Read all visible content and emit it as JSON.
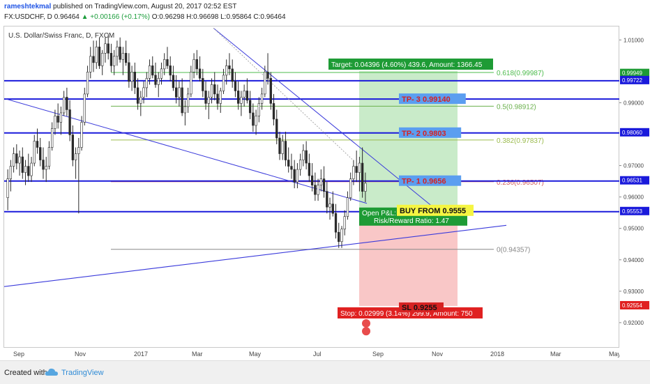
{
  "header": {
    "user": "rameshtekmal",
    "published": "published on TradingView.com, August 20, 2017 02:52 EST",
    "symbol": "FX:USDCHF, D",
    "last": "0.96464",
    "change": "▲ +0.00166 (+0.17%)",
    "ohlc": "O:0.96298 H:0.96698 L:0.95864 C:0.96464"
  },
  "symbol_title": "U.S. Dollar/Swiss Franc, D, FXCM",
  "footer": {
    "created": "Created with",
    "brand": "TradingView"
  },
  "colors": {
    "level_line": "#1a1adb",
    "trend_line": "#3a3adb",
    "target_green": "#b7e4b7",
    "stop_red": "#f7b4b4",
    "label_green": "#1e9b35",
    "label_red": "#e02121",
    "yellow": "#f5f542"
  },
  "chart_data": {
    "type": "candlestick",
    "title": "U.S. Dollar/Swiss Franc, D, FXCM",
    "x_ticks": [
      "Sep",
      "Nov",
      "2017",
      "Mar",
      "May",
      "Jul",
      "Sep",
      "Nov",
      "2018",
      "Mar",
      "May"
    ],
    "y_ticks": [
      "1.01000",
      "0.99000",
      "0.97000",
      "0.96000",
      "0.95000",
      "0.94000",
      "0.93000",
      "0.92000"
    ],
    "ylim": [
      0.912,
      1.0145
    ],
    "current_price": 0.96464,
    "price_labels": [
      {
        "value": 0.99949,
        "text": "0.99949",
        "color": "#1e9b35"
      },
      {
        "value": 0.99722,
        "text": "0.99722",
        "color": "#1a1adb"
      },
      {
        "value": 0.9806,
        "text": "0.98060",
        "color": "#1a1adb"
      },
      {
        "value": 0.96531,
        "text": "0.96531",
        "color": "#1a1adb"
      },
      {
        "value": 0.95553,
        "text": "0.95553",
        "color": "#1a1adb"
      },
      {
        "value": 0.92554,
        "text": "0.92554",
        "color": "#e02121"
      }
    ],
    "horizontal_levels": [
      0.99722,
      0.9914,
      0.9806,
      0.96531,
      0.95553
    ],
    "fib_levels": [
      {
        "value": 0.99987,
        "label": "0.618(0.99987)",
        "color": "#4dbb4d"
      },
      {
        "value": 0.98912,
        "label": "0.5(0.98912)",
        "color": "#6ab04c"
      },
      {
        "value": 0.97837,
        "label": "0.382(0.97837)",
        "color": "#9bbb4d"
      },
      {
        "value": 0.96507,
        "label": "0.236(0.96507)",
        "color": "#d26060"
      },
      {
        "value": 0.94357,
        "label": "0(0.94357)",
        "color": "#888888"
      }
    ],
    "annotations": {
      "target": "Target: 0.04396 (4.60%) 439.6, Amount: 1366.45",
      "stop": "Stop: 0.02999 (3.14%) 299.9, Amount: 750",
      "open_pl": "Open P&L:",
      "risk_reward": "Risk/Reward Ratio: 1.47",
      "buy": "BUY FROM 0.9555",
      "tp1": "TP- 1 0.9656",
      "tp2": "TP- 2 0.9803",
      "tp3": "TP- 3 0.99140",
      "sl": "SL  0.9255"
    },
    "candles": [
      [
        0.96,
        0.969,
        0.956,
        0.966
      ],
      [
        0.966,
        0.972,
        0.962,
        0.97
      ],
      [
        0.97,
        0.976,
        0.968,
        0.974
      ],
      [
        0.974,
        0.977,
        0.969,
        0.971
      ],
      [
        0.971,
        0.975,
        0.967,
        0.973
      ],
      [
        0.973,
        0.976,
        0.966,
        0.968
      ],
      [
        0.968,
        0.972,
        0.964,
        0.97
      ],
      [
        0.97,
        0.974,
        0.965,
        0.967
      ],
      [
        0.967,
        0.973,
        0.965,
        0.971
      ],
      [
        0.971,
        0.98,
        0.97,
        0.978
      ],
      [
        0.978,
        0.982,
        0.974,
        0.976
      ],
      [
        0.976,
        0.979,
        0.97,
        0.972
      ],
      [
        0.972,
        0.976,
        0.966,
        0.969
      ],
      [
        0.969,
        0.973,
        0.965,
        0.97
      ],
      [
        0.97,
        0.978,
        0.969,
        0.976
      ],
      [
        0.976,
        0.984,
        0.975,
        0.982
      ],
      [
        0.982,
        0.988,
        0.98,
        0.986
      ],
      [
        0.986,
        0.99,
        0.982,
        0.984
      ],
      [
        0.984,
        0.989,
        0.98,
        0.987
      ],
      [
        0.987,
        0.994,
        0.986,
        0.992
      ],
      [
        0.992,
        0.995,
        0.986,
        0.988
      ],
      [
        0.988,
        0.991,
        0.978,
        0.98
      ],
      [
        0.98,
        0.983,
        0.97,
        0.972
      ],
      [
        0.972,
        0.976,
        0.966,
        0.974
      ],
      [
        0.974,
        0.979,
        0.955,
        0.976
      ],
      [
        0.976,
        0.986,
        0.975,
        0.984
      ],
      [
        0.984,
        0.995,
        0.983,
        0.993
      ],
      [
        0.993,
        1.002,
        0.992,
        1.0
      ],
      [
        1.0,
        1.008,
        0.998,
        1.005
      ],
      [
        1.005,
        1.01,
        1.0,
        1.003
      ],
      [
        1.003,
        1.01,
        1.001,
        1.008
      ],
      [
        1.008,
        1.011,
        1.001,
        1.002
      ],
      [
        1.002,
        1.007,
        0.999,
        1.006
      ],
      [
        1.006,
        1.011,
        1.003,
        1.009
      ],
      [
        1.009,
        1.012,
        1.004,
        1.006
      ],
      [
        1.006,
        1.009,
        1.0,
        1.002
      ],
      [
        1.002,
        1.007,
        0.999,
        1.005
      ],
      [
        1.005,
        1.01,
        1.002,
        1.008
      ],
      [
        1.008,
        1.011,
        1.003,
        1.004
      ],
      [
        1.004,
        1.008,
        0.999,
        1.006
      ],
      [
        1.006,
        1.01,
        1.002,
        1.003
      ],
      [
        1.003,
        1.006,
        0.995,
        0.997
      ],
      [
        0.997,
        1.002,
        0.994,
        1.0
      ],
      [
        1.0,
        1.003,
        0.993,
        0.995
      ],
      [
        0.995,
        0.998,
        0.988,
        0.99
      ],
      [
        0.99,
        0.994,
        0.986,
        0.992
      ],
      [
        0.992,
        0.997,
        0.99,
        0.995
      ],
      [
        0.995,
        1.0,
        0.992,
        0.998
      ],
      [
        0.998,
        1.004,
        0.996,
        1.002
      ],
      [
        1.002,
        1.005,
        0.998,
        0.999
      ],
      [
        0.999,
        1.003,
        0.995,
        0.996
      ],
      [
        0.996,
        1.0,
        0.992,
        0.998
      ],
      [
        0.998,
        1.003,
        0.996,
        1.001
      ],
      [
        1.001,
        1.006,
        0.999,
        1.004
      ],
      [
        1.004,
        1.008,
        1.001,
        1.002
      ],
      [
        1.002,
        1.005,
        0.997,
        0.999
      ],
      [
        0.999,
        1.002,
        0.994,
        0.995
      ],
      [
        0.995,
        0.999,
        0.99,
        0.992
      ],
      [
        0.992,
        0.997,
        0.989,
        0.995
      ],
      [
        0.995,
        0.998,
        0.986,
        0.987
      ],
      [
        0.987,
        0.991,
        0.983,
        0.989
      ],
      [
        0.989,
        0.995,
        0.987,
        0.993
      ],
      [
        0.993,
        1.002,
        0.992,
        1.0
      ],
      [
        1.0,
        1.006,
        0.998,
        1.004
      ],
      [
        1.004,
        1.007,
        0.999,
        1.001
      ],
      [
        1.001,
        1.005,
        0.997,
        0.998
      ],
      [
        0.998,
        1.001,
        0.992,
        0.994
      ],
      [
        0.994,
        0.997,
        0.988,
        0.99
      ],
      [
        0.99,
        0.994,
        0.985,
        0.992
      ],
      [
        0.992,
        0.998,
        0.99,
        0.996
      ],
      [
        0.996,
        1.0,
        0.991,
        0.993
      ],
      [
        0.993,
        0.996,
        0.988,
        0.99
      ],
      [
        0.99,
        0.995,
        0.987,
        0.994
      ],
      [
        0.994,
        1.001,
        0.993,
        0.999
      ],
      [
        0.999,
        1.004,
        0.996,
        1.002
      ],
      [
        1.002,
        1.006,
        0.999,
        1.001
      ],
      [
        1.001,
        1.004,
        0.995,
        0.997
      ],
      [
        0.997,
        1.0,
        0.992,
        0.994
      ],
      [
        0.994,
        0.997,
        0.988,
        0.99
      ],
      [
        0.99,
        0.994,
        0.986,
        0.992
      ],
      [
        0.992,
        0.996,
        0.989,
        0.994
      ],
      [
        0.994,
        0.998,
        0.99,
        0.991
      ],
      [
        0.991,
        0.994,
        0.985,
        0.987
      ],
      [
        0.987,
        0.99,
        0.981,
        0.983
      ],
      [
        0.983,
        0.988,
        0.98,
        0.986
      ],
      [
        0.986,
        0.992,
        0.984,
        0.99
      ],
      [
        0.99,
        0.995,
        0.988,
        0.993
      ],
      [
        0.993,
        1.002,
        0.992,
        1.0
      ],
      [
        1.0,
        1.006,
        0.996,
        0.998
      ],
      [
        0.998,
        1.0,
        0.988,
        0.99
      ],
      [
        0.99,
        0.993,
        0.983,
        0.985
      ],
      [
        0.985,
        0.988,
        0.977,
        0.979
      ],
      [
        0.979,
        0.981,
        0.972,
        0.974
      ],
      [
        0.974,
        0.98,
        0.972,
        0.978
      ],
      [
        0.978,
        0.981,
        0.97,
        0.972
      ],
      [
        0.972,
        0.976,
        0.968,
        0.97
      ],
      [
        0.97,
        0.974,
        0.966,
        0.969
      ],
      [
        0.969,
        0.972,
        0.963,
        0.965
      ],
      [
        0.965,
        0.971,
        0.963,
        0.969
      ],
      [
        0.969,
        0.974,
        0.967,
        0.972
      ],
      [
        0.972,
        0.977,
        0.97,
        0.975
      ],
      [
        0.975,
        0.978,
        0.969,
        0.971
      ],
      [
        0.971,
        0.974,
        0.965,
        0.967
      ],
      [
        0.967,
        0.971,
        0.962,
        0.964
      ],
      [
        0.964,
        0.968,
        0.959,
        0.961
      ],
      [
        0.961,
        0.966,
        0.959,
        0.964
      ],
      [
        0.964,
        0.969,
        0.962,
        0.966
      ],
      [
        0.966,
        0.97,
        0.96,
        0.962
      ],
      [
        0.962,
        0.965,
        0.955,
        0.957
      ],
      [
        0.957,
        0.96,
        0.953,
        0.958
      ],
      [
        0.958,
        0.962,
        0.954,
        0.955
      ],
      [
        0.955,
        0.958,
        0.947,
        0.949
      ],
      [
        0.949,
        0.952,
        0.944,
        0.946
      ],
      [
        0.946,
        0.951,
        0.944,
        0.95
      ],
      [
        0.95,
        0.956,
        0.948,
        0.954
      ],
      [
        0.954,
        0.962,
        0.953,
        0.96
      ],
      [
        0.96,
        0.968,
        0.959,
        0.966
      ],
      [
        0.966,
        0.972,
        0.964,
        0.97
      ],
      [
        0.97,
        0.975,
        0.965,
        0.968
      ],
      [
        0.968,
        0.973,
        0.962,
        0.971
      ],
      [
        0.971,
        0.976,
        0.96,
        0.962
      ],
      [
        0.962,
        0.968,
        0.9586,
        0.9646
      ]
    ]
  }
}
